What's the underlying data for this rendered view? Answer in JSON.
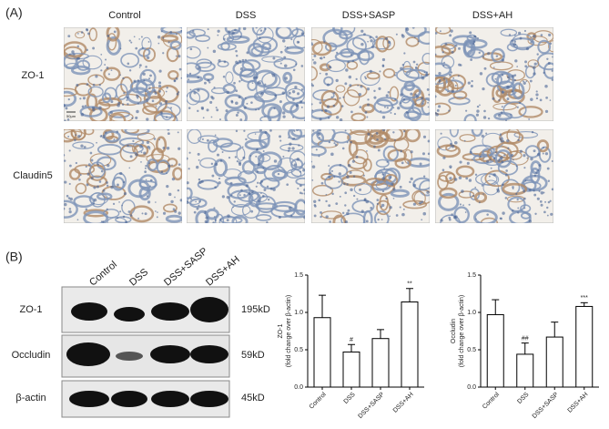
{
  "panel_a": {
    "label": "(A)",
    "columns": [
      "Control",
      "DSS",
      "DSS+SASP",
      "DSS+AH"
    ],
    "rows": [
      "ZO-1",
      "Claudin5"
    ],
    "scale_bar": "50μm"
  },
  "panel_b": {
    "label": "(B)",
    "lanes": [
      "Control",
      "DSS",
      "DSS+SASP",
      "DSS+AH"
    ],
    "blots": [
      {
        "name": "ZO-1",
        "size": "195kD"
      },
      {
        "name": "Occludin",
        "size": "59kD"
      },
      {
        "name": "β-actin",
        "size": "45kD"
      }
    ]
  },
  "chart_data": [
    {
      "type": "bar",
      "ylabel": [
        "ZO-1",
        "(fold change over β-actin)"
      ],
      "categories": [
        "Control",
        "DSS",
        "DSS+SASP",
        "DSS+AH"
      ],
      "values": [
        0.93,
        0.47,
        0.65,
        1.14
      ],
      "errors": [
        0.3,
        0.1,
        0.12,
        0.18
      ],
      "annotations": [
        null,
        "#",
        null,
        "**"
      ],
      "color": "#ffffff",
      "ylim": [
        0,
        1.5
      ],
      "yticks": [
        {
          "value": 0,
          "label": "0.0"
        },
        {
          "value": 0.5,
          "label": "0.5"
        },
        {
          "value": 1,
          "label": "1.0"
        },
        {
          "value": 1.5,
          "label": "1.5"
        }
      ]
    },
    {
      "type": "bar",
      "ylabel": [
        "Occludin",
        "(fold change over β-actin)"
      ],
      "categories": [
        "Control",
        "DSS",
        "DSS+SASP",
        "DSS+AH"
      ],
      "values": [
        0.97,
        0.44,
        0.67,
        1.08
      ],
      "errors": [
        0.2,
        0.15,
        0.2,
        0.05
      ],
      "annotations": [
        null,
        "##",
        null,
        "***"
      ],
      "color": "#ffffff",
      "ylim": [
        0,
        1.5
      ],
      "yticks": [
        {
          "value": 0,
          "label": "0.0"
        },
        {
          "value": 0.5,
          "label": "0.5"
        },
        {
          "value": 1,
          "label": "1.0"
        },
        {
          "value": 1.5,
          "label": "1.5"
        }
      ]
    }
  ]
}
